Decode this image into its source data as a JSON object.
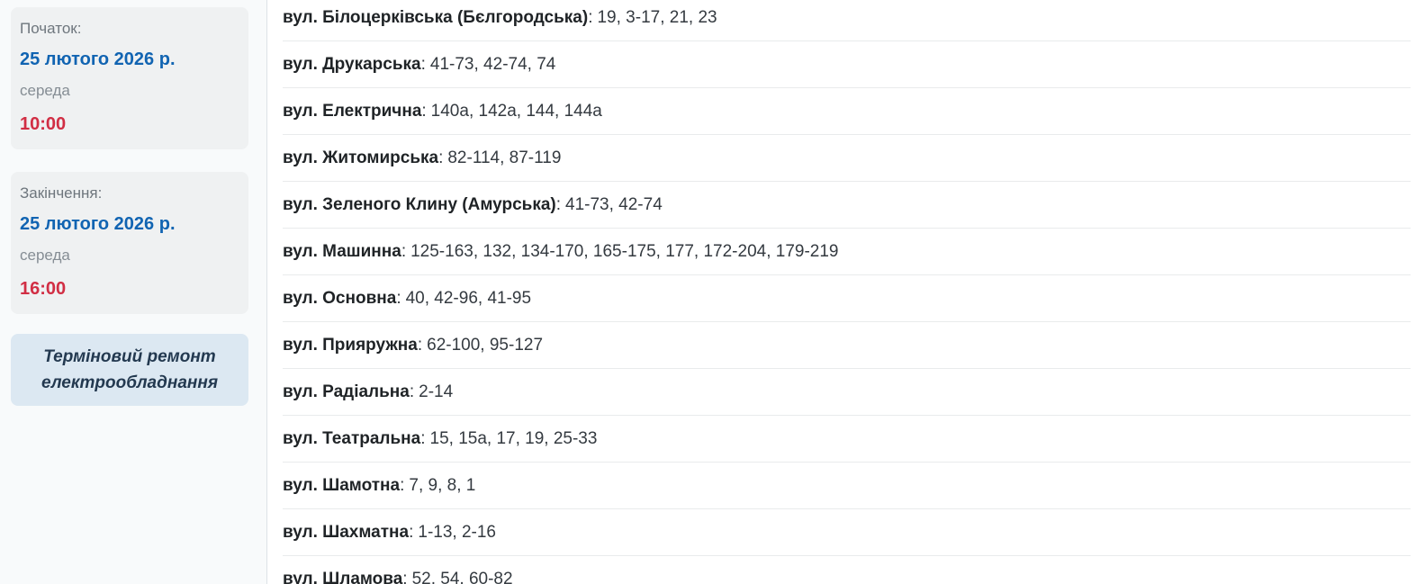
{
  "sidebar": {
    "start": {
      "label": "Початок:",
      "date": "25 лютого 2026 р.",
      "weekday": "середа",
      "time": "10:00"
    },
    "end": {
      "label": "Закінчення:",
      "date": "25 лютого 2026 р.",
      "weekday": "середа",
      "time": "16:00"
    },
    "reason": "Терміновий ремонт електрообладнання"
  },
  "list": {
    "separator": ":"
  },
  "streets": [
    {
      "name": "вул. Білоцерківська (Бєлгородська)",
      "numbers": "19, 3-17, 21, 23"
    },
    {
      "name": "вул. Друкарська",
      "numbers": "41-73, 42-74, 74"
    },
    {
      "name": "вул. Електрична",
      "numbers": "140а, 142а, 144, 144а"
    },
    {
      "name": "вул. Житомирська",
      "numbers": "82-114, 87-119"
    },
    {
      "name": "вул. Зеленого Клину (Амурська)",
      "numbers": "41-73, 42-74"
    },
    {
      "name": "вул. Машинна",
      "numbers": "125-163, 132, 134-170, 165-175, 177, 172-204, 179-219"
    },
    {
      "name": "вул. Основна",
      "numbers": "40, 42-96, 41-95"
    },
    {
      "name": "вул. Прияружна",
      "numbers": "62-100, 95-127"
    },
    {
      "name": "вул. Радіальна",
      "numbers": "2-14"
    },
    {
      "name": "вул. Театральна",
      "numbers": "15, 15а, 17, 19, 25-33"
    },
    {
      "name": "вул. Шамотна",
      "numbers": "7, 9, 8, 1"
    },
    {
      "name": "вул. Шахматна",
      "numbers": "1-13, 2-16"
    },
    {
      "name": "вул. Шламова",
      "numbers": "52, 54, 60-82"
    }
  ],
  "colors": {
    "date_blue": "#1164b2",
    "time_red": "#d12e44",
    "card_bg": "#eff1f2",
    "reason_bg": "#dce8f2",
    "reason_text": "#233950",
    "sidebar_bg": "#f8fafb",
    "row_separator": "#e9ebec"
  }
}
